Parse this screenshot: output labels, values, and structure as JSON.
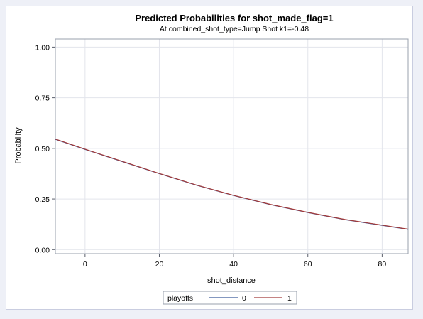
{
  "chart_data": {
    "type": "line",
    "title": "Predicted Probabilities for shot_made_flag=1",
    "subtitle": "At combined_shot_type=Jump Shot k1=-0.48",
    "xlabel": "shot_distance",
    "ylabel": "Probability",
    "xlim": [
      -8,
      87
    ],
    "ylim": [
      -0.02,
      1.04
    ],
    "xticks": [
      0,
      20,
      40,
      60,
      80
    ],
    "yticks": [
      "0.00",
      "0.25",
      "0.50",
      "0.75",
      "1.00"
    ],
    "grid": true,
    "legend": {
      "title": "playoffs",
      "position": "bottom-center"
    },
    "x": [
      -8,
      0,
      10,
      20,
      30,
      40,
      50,
      60,
      70,
      80,
      87
    ],
    "series": [
      {
        "name": "0",
        "color": "#3b5a9a",
        "values": [
          0.545,
          0.495,
          0.435,
          0.375,
          0.318,
          0.267,
          0.222,
          0.183,
          0.148,
          0.12,
          0.1
        ]
      },
      {
        "name": "1",
        "color": "#a23a3a",
        "values": [
          0.546,
          0.496,
          0.436,
          0.376,
          0.319,
          0.268,
          0.223,
          0.184,
          0.149,
          0.121,
          0.101
        ]
      }
    ]
  }
}
